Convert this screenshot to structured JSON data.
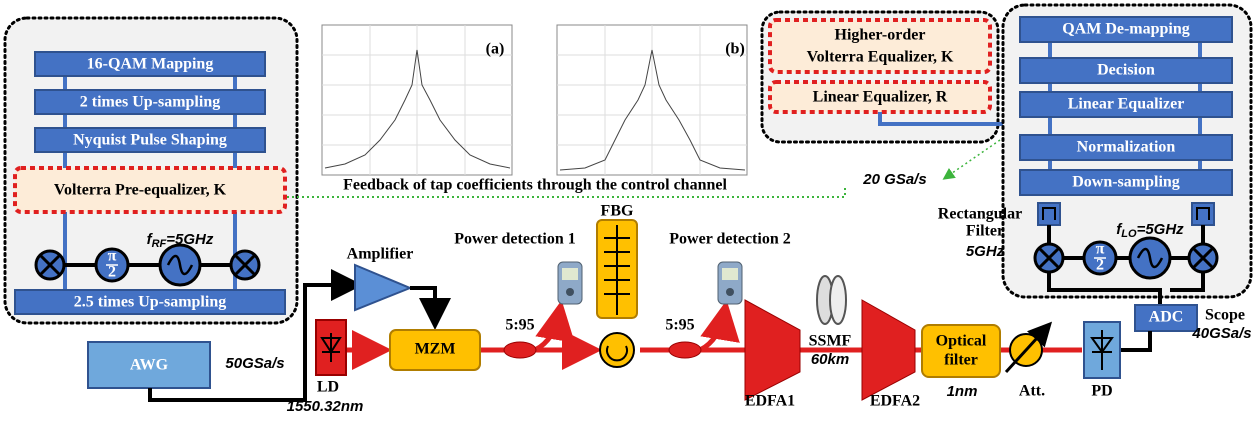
{
  "transmitter_dsp": {
    "blocks": [
      "16-QAM Mapping",
      "2 times Up-sampling",
      "Nyquist Pulse Shaping"
    ],
    "pre_equalizer": "Volterra  Pre-equalizer, K",
    "rf_frequency": {
      "symbol": "f",
      "subscript": "RF",
      "value": "=5GHz"
    },
    "phase_shift": {
      "numerator": "π",
      "denominator": "2"
    },
    "upsampling": "2.5 times Up-sampling"
  },
  "spectra": [
    {
      "label": "(a)"
    },
    {
      "label": "(b)"
    }
  ],
  "feedback_note": "Feedback of tap coefficients through the control channel",
  "adaptive_equalizers": {
    "volterra": [
      "Higher-order",
      "Volterra Equalizer, K"
    ],
    "linear": "Linear Equalizer, R",
    "rate": "20 GSa/s"
  },
  "receiver_dsp": {
    "blocks": [
      "QAM De-mapping",
      "Decision",
      "Linear Equalizer",
      "Normalization",
      "Down-sampling"
    ],
    "filter": [
      "Rectangular",
      "Filter",
      "5GHz"
    ],
    "lo_frequency": {
      "symbol": "f",
      "subscript": "LO",
      "value": "=5GHz"
    },
    "phase_shift": {
      "numerator": "π",
      "denominator": "2"
    }
  },
  "link": {
    "awg": "AWG",
    "awg_rate": "50GSa/s",
    "laser": "LD",
    "wavelength": "1550.32nm",
    "amplifier": "Amplifier",
    "modulator": "MZM",
    "coupler_1": "5:95",
    "power_detection_1": "Power detection 1",
    "fbg": "FBG",
    "coupler_2": "5:95",
    "power_detection_2": "Power detection 2",
    "edfa_1": "EDFA1",
    "fiber": "SSMF",
    "fiber_length": "60km",
    "edfa_2": "EDFA2",
    "optical_filter": [
      "Optical",
      "filter"
    ],
    "filter_bandwidth": "1nm",
    "attenuator": "Att.",
    "photodiode": "PD",
    "adc": "ADC",
    "scope": "Scope",
    "scope_rate": "40GSa/s"
  }
}
